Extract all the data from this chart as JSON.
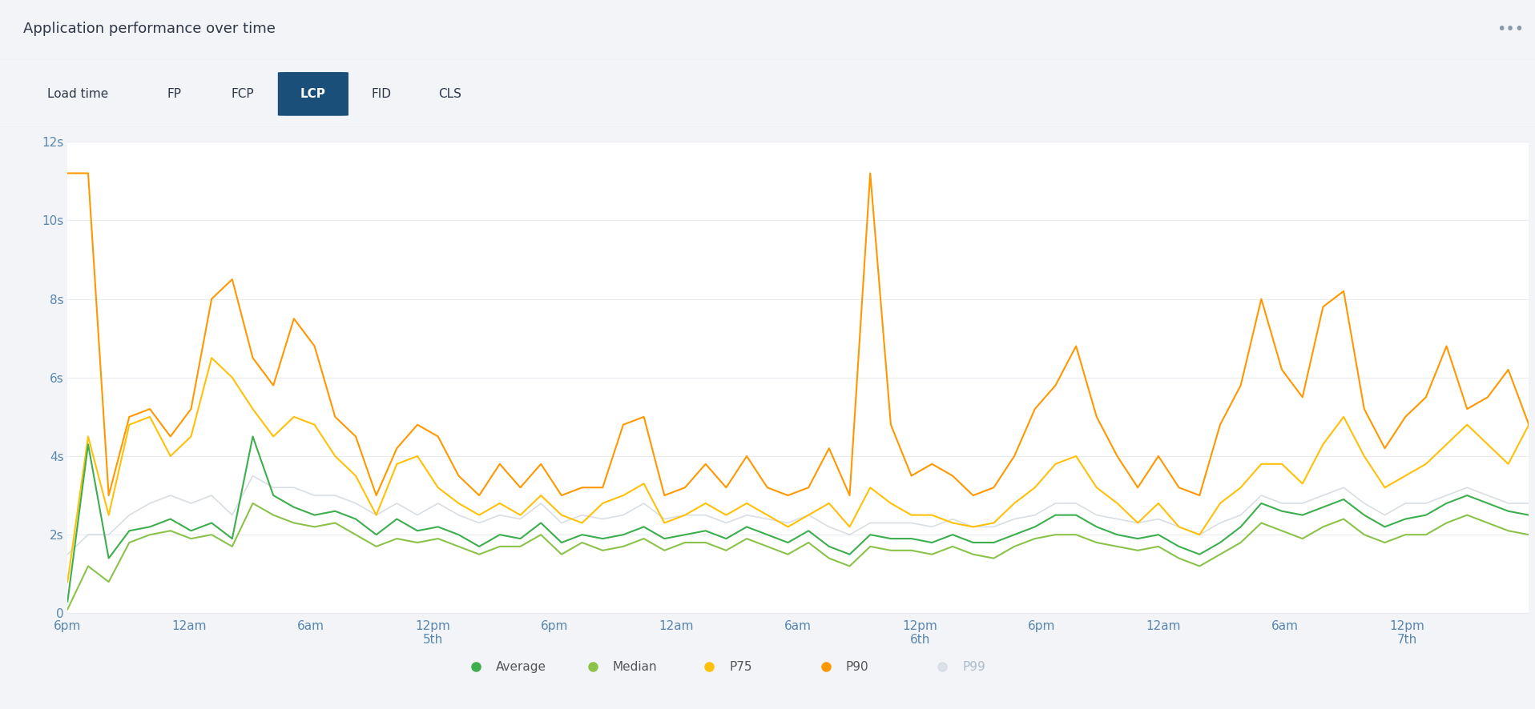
{
  "title": "Application performance over time",
  "background_color": "#f2f4f7",
  "plot_background": "#ffffff",
  "tabs": [
    "Load time",
    "FP",
    "FCP",
    "LCP",
    "FID",
    "CLS"
  ],
  "active_tab": "LCP",
  "x_tick_labels": [
    "6pm",
    "12am",
    "6am",
    "12pm\n5th",
    "6pm",
    "12am",
    "6am",
    "12pm\n6th",
    "6pm",
    "12am",
    "6am",
    "12pm\n7th",
    ""
  ],
  "x_tick_pos": [
    0,
    6,
    12,
    18,
    24,
    30,
    36,
    42,
    48,
    54,
    60,
    66,
    72
  ],
  "ylim": [
    0,
    12
  ],
  "yticks": [
    0,
    2,
    4,
    6,
    8,
    10,
    12
  ],
  "ytick_labels": [
    "0",
    "2s",
    "4s",
    "6s",
    "8s",
    "10s",
    "12s"
  ],
  "legend": [
    "Average",
    "Median",
    "P75",
    "P90",
    "P99"
  ],
  "legend_colors": [
    "#3dae4e",
    "#8bc34a",
    "#ffc107",
    "#ff9800",
    "#c8d0d8"
  ],
  "line_colors": {
    "average": "#3dae4e",
    "median": "#8bc34a",
    "p75": "#ffc107",
    "p90": "#ff9800",
    "p99": "#c8d0d8"
  },
  "average": [
    0.3,
    4.3,
    1.4,
    2.1,
    2.2,
    2.4,
    2.1,
    2.3,
    1.9,
    4.5,
    3.0,
    2.7,
    2.5,
    2.6,
    2.4,
    2.0,
    2.4,
    2.1,
    2.2,
    2.0,
    1.7,
    2.0,
    1.9,
    2.3,
    1.8,
    2.0,
    1.9,
    2.0,
    2.2,
    1.9,
    2.0,
    2.1,
    1.9,
    2.2,
    2.0,
    1.8,
    2.1,
    1.7,
    1.5,
    2.0,
    1.9,
    1.9,
    1.8,
    2.0,
    1.8,
    1.8,
    2.0,
    2.2,
    2.5,
    2.5,
    2.2,
    2.0,
    1.9,
    2.0,
    1.7,
    1.5,
    1.8,
    2.2,
    2.8,
    2.6,
    2.5,
    2.7,
    2.9,
    2.5,
    2.2,
    2.4,
    2.5,
    2.8,
    3.0,
    2.8,
    2.6,
    2.5
  ],
  "median": [
    0.1,
    1.2,
    0.8,
    1.8,
    2.0,
    2.1,
    1.9,
    2.0,
    1.7,
    2.8,
    2.5,
    2.3,
    2.2,
    2.3,
    2.0,
    1.7,
    1.9,
    1.8,
    1.9,
    1.7,
    1.5,
    1.7,
    1.7,
    2.0,
    1.5,
    1.8,
    1.6,
    1.7,
    1.9,
    1.6,
    1.8,
    1.8,
    1.6,
    1.9,
    1.7,
    1.5,
    1.8,
    1.4,
    1.2,
    1.7,
    1.6,
    1.6,
    1.5,
    1.7,
    1.5,
    1.4,
    1.7,
    1.9,
    2.0,
    2.0,
    1.8,
    1.7,
    1.6,
    1.7,
    1.4,
    1.2,
    1.5,
    1.8,
    2.3,
    2.1,
    1.9,
    2.2,
    2.4,
    2.0,
    1.8,
    2.0,
    2.0,
    2.3,
    2.5,
    2.3,
    2.1,
    2.0
  ],
  "p75": [
    0.8,
    4.5,
    2.5,
    4.8,
    5.0,
    4.0,
    4.5,
    6.5,
    6.0,
    5.2,
    4.5,
    5.0,
    4.8,
    4.0,
    3.5,
    2.5,
    3.8,
    4.0,
    3.2,
    2.8,
    2.5,
    2.8,
    2.5,
    3.0,
    2.5,
    2.3,
    2.8,
    3.0,
    3.3,
    2.3,
    2.5,
    2.8,
    2.5,
    2.8,
    2.5,
    2.2,
    2.5,
    2.8,
    2.2,
    3.2,
    2.8,
    2.5,
    2.5,
    2.3,
    2.2,
    2.3,
    2.8,
    3.2,
    3.8,
    4.0,
    3.2,
    2.8,
    2.3,
    2.8,
    2.2,
    2.0,
    2.8,
    3.2,
    3.8,
    3.8,
    3.3,
    4.3,
    5.0,
    4.0,
    3.2,
    3.5,
    3.8,
    4.3,
    4.8,
    4.3,
    3.8,
    4.8
  ],
  "p90": [
    11.2,
    11.2,
    3.0,
    5.0,
    5.2,
    4.5,
    5.2,
    8.0,
    8.5,
    6.5,
    5.8,
    7.5,
    6.8,
    5.0,
    4.5,
    3.0,
    4.2,
    4.8,
    4.5,
    3.5,
    3.0,
    3.8,
    3.2,
    3.8,
    3.0,
    3.2,
    3.2,
    4.8,
    5.0,
    3.0,
    3.2,
    3.8,
    3.2,
    4.0,
    3.2,
    3.0,
    3.2,
    4.2,
    3.0,
    11.2,
    4.8,
    3.5,
    3.8,
    3.5,
    3.0,
    3.2,
    4.0,
    5.2,
    5.8,
    6.8,
    5.0,
    4.0,
    3.2,
    4.0,
    3.2,
    3.0,
    4.8,
    5.8,
    8.0,
    6.2,
    5.5,
    7.8,
    8.2,
    5.2,
    4.2,
    5.0,
    5.5,
    6.8,
    5.2,
    5.5,
    6.2,
    4.8
  ],
  "p99": [
    1.5,
    2.0,
    2.0,
    2.5,
    2.8,
    3.0,
    2.8,
    3.0,
    2.5,
    3.5,
    3.2,
    3.2,
    3.0,
    3.0,
    2.8,
    2.5,
    2.8,
    2.5,
    2.8,
    2.5,
    2.3,
    2.5,
    2.4,
    2.8,
    2.3,
    2.5,
    2.4,
    2.5,
    2.8,
    2.4,
    2.5,
    2.5,
    2.3,
    2.5,
    2.4,
    2.3,
    2.5,
    2.2,
    2.0,
    2.3,
    2.3,
    2.3,
    2.2,
    2.4,
    2.2,
    2.2,
    2.4,
    2.5,
    2.8,
    2.8,
    2.5,
    2.4,
    2.3,
    2.4,
    2.2,
    2.0,
    2.3,
    2.5,
    3.0,
    2.8,
    2.8,
    3.0,
    3.2,
    2.8,
    2.5,
    2.8,
    2.8,
    3.0,
    3.2,
    3.0,
    2.8,
    2.8
  ]
}
